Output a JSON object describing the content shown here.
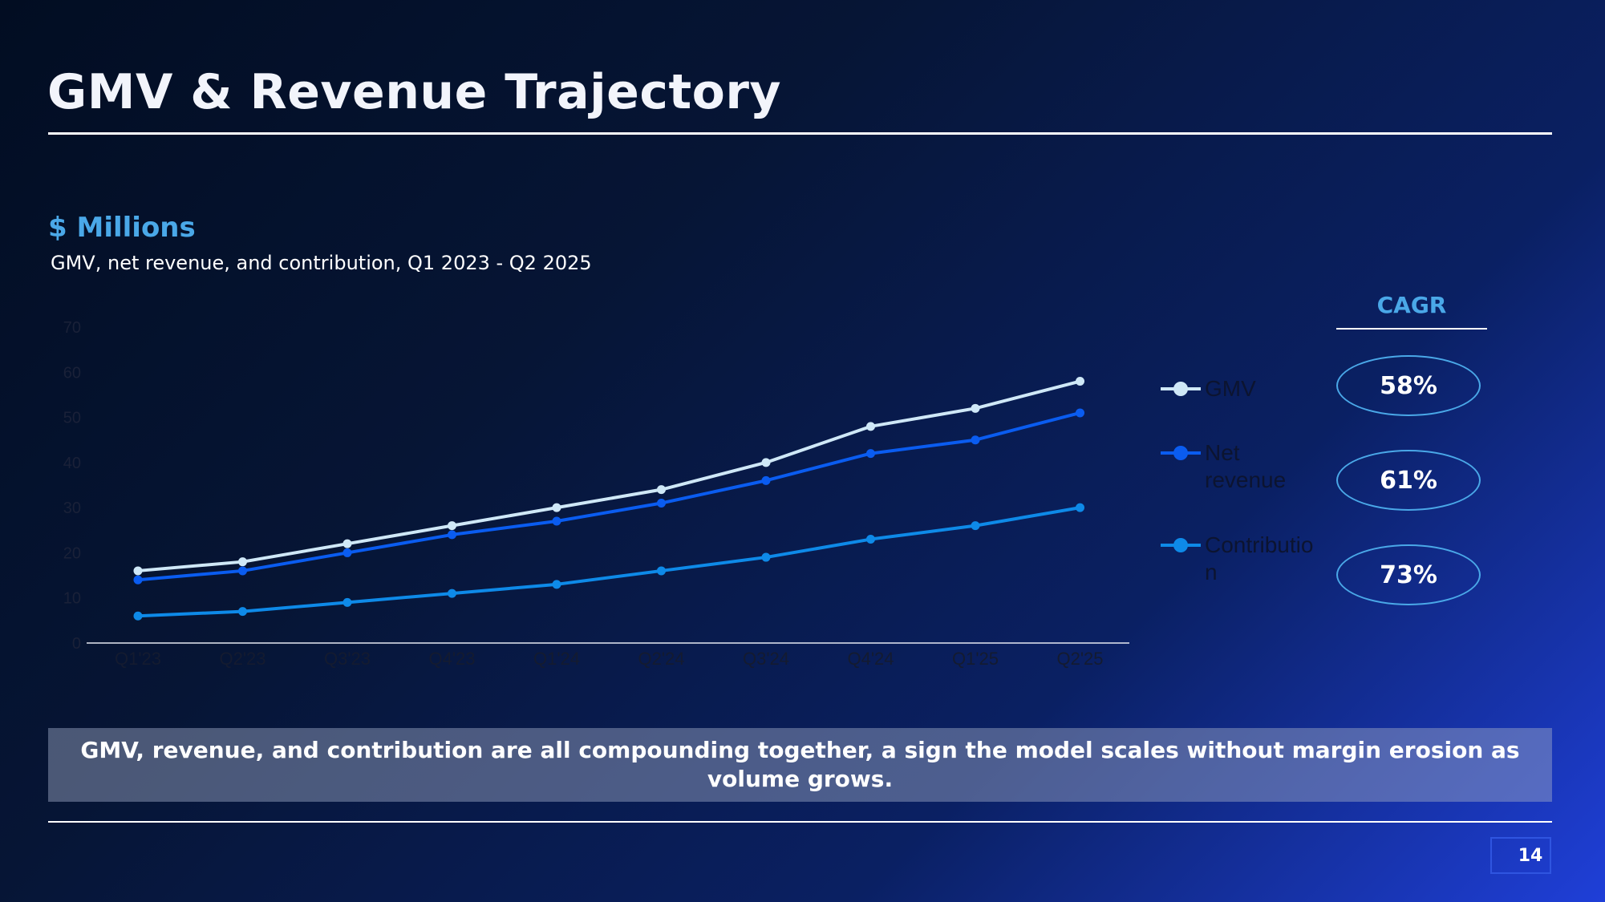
{
  "slide": {
    "title": "GMV & Revenue Trajectory",
    "unit_label": "$ Millions",
    "subtitle": "GMV, net revenue, and contribution, Q1 2023 - Q2 2025",
    "takeaway": "GMV, revenue, and contribution are all compounding together, a sign the model scales without margin erosion as volume grows.",
    "page_number": "14"
  },
  "cagr": {
    "header": "CAGR",
    "values": [
      "58%",
      "61%",
      "73%"
    ]
  },
  "colors": {
    "gmv": "#cfe8f7",
    "net_revenue": "#0a5cf0",
    "contribution": "#0e8ae8",
    "accent": "#4aa8e8"
  },
  "chart_data": {
    "type": "line",
    "categories": [
      "Q1'23",
      "Q2'23",
      "Q3'23",
      "Q4'23",
      "Q1'24",
      "Q2'24",
      "Q3'24",
      "Q4'24",
      "Q1'25",
      "Q2'25"
    ],
    "ylim": [
      0,
      70
    ],
    "yticks": [
      0,
      10,
      20,
      30,
      40,
      50,
      60,
      70
    ],
    "grid": false,
    "legend_position": "right",
    "series": [
      {
        "name": "GMV",
        "values": [
          16,
          18,
          22,
          26,
          30,
          34,
          40,
          48,
          52,
          58
        ]
      },
      {
        "name": "Net revenue",
        "values": [
          14,
          16,
          20,
          24,
          27,
          31,
          36,
          42,
          45,
          51
        ]
      },
      {
        "name": "Contribution",
        "values": [
          6,
          7,
          9,
          11,
          13,
          16,
          19,
          23,
          26,
          30
        ]
      }
    ]
  }
}
